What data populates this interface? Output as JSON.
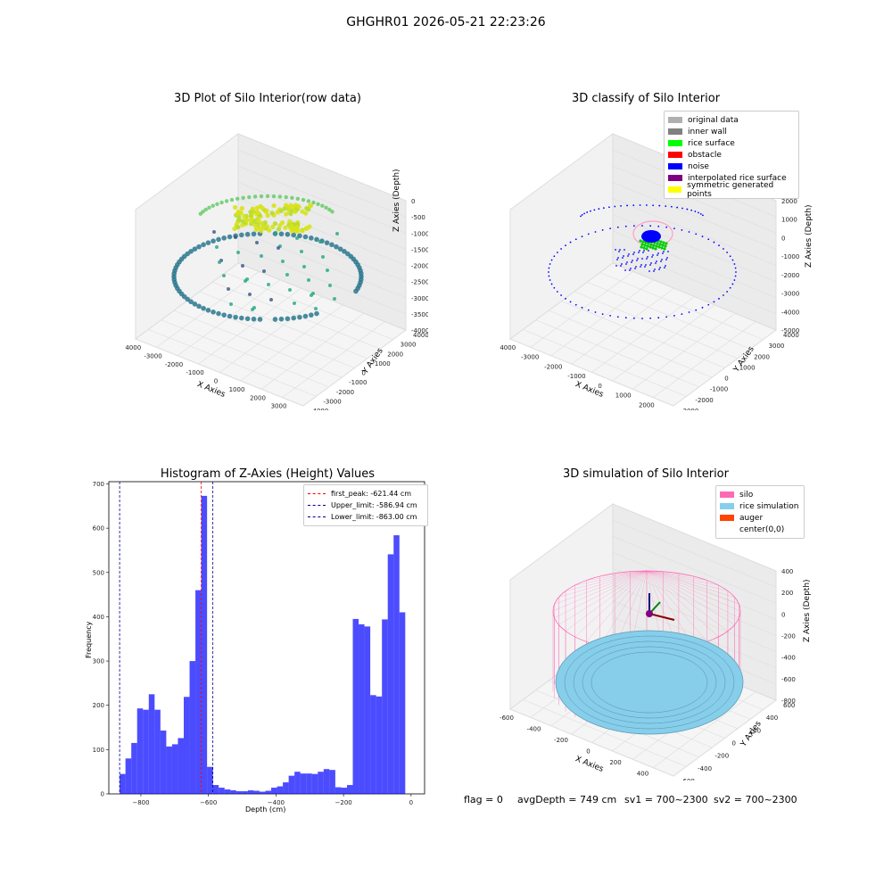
{
  "suptitle": "GHGHR01 2026-05-21 22:23:26",
  "plots": {
    "raw": {
      "title": "3D Plot of Silo Interior(row data)",
      "xlabel": "X Axies",
      "ylabel": "Y Axies",
      "zlabel": "Z Axies (Depth)",
      "xticks": [
        "-4000",
        "-3000",
        "-2000",
        "-1000",
        "0",
        "1000",
        "2000",
        "3000",
        "4000"
      ],
      "yticks": [
        "-4000",
        "-3000",
        "-2000",
        "-1000",
        "0",
        "1000",
        "2000",
        "3000",
        "4000"
      ],
      "zticks": [
        "0",
        "-500",
        "-1000",
        "-1500",
        "-2000",
        "-2500",
        "-3000",
        "-3500",
        "-4000"
      ]
    },
    "classify": {
      "title": "3D classify of Silo Interior",
      "xlabel": "X Axies",
      "ylabel": "Y Axies",
      "zlabel": "Z Axies (Depth)",
      "xticks": [
        "-4000",
        "-3000",
        "-2000",
        "-1000",
        "0",
        "1000",
        "2000",
        "3000"
      ],
      "yticks": [
        "-3000",
        "-2000",
        "-1000",
        "0",
        "1000",
        "2000",
        "3000",
        "4000"
      ],
      "zticks": [
        "2000",
        "1000",
        "0",
        "-1000",
        "-2000",
        "-3000",
        "-4000",
        "-5000"
      ],
      "legend": [
        {
          "label": "original data",
          "color": "#b0b0b0"
        },
        {
          "label": "inner wall",
          "color": "#808080"
        },
        {
          "label": "rice surface",
          "color": "#00ff00"
        },
        {
          "label": "obstacle",
          "color": "#ff0000"
        },
        {
          "label": "noise",
          "color": "#0000ff"
        },
        {
          "label": "interpolated rice surface",
          "color": "#800080"
        },
        {
          "label": "symmetric generated points",
          "color": "#ffff00"
        }
      ]
    },
    "simulation": {
      "title": "3D simulation of Silo Interior",
      "xlabel": "X Axies",
      "ylabel": "Y Axies",
      "zlabel": "Z Axies (Depth)",
      "xticks": [
        "-600",
        "-400",
        "-200",
        "0",
        "200",
        "400",
        "600"
      ],
      "yticks": [
        "-600",
        "-400",
        "-200",
        "0",
        "200",
        "400",
        "600"
      ],
      "zticks": [
        "400",
        "200",
        "0",
        "-200",
        "-400",
        "-600",
        "-800"
      ],
      "legend": [
        {
          "label": "silo",
          "color": "#ff69b4"
        },
        {
          "label": "rice simulation",
          "color": "#87ceeb"
        },
        {
          "label": "auger",
          "color": "#ff4500"
        },
        {
          "label": "center(0,0)",
          "color": ""
        }
      ]
    }
  },
  "footer": {
    "flag": "flag = 0",
    "avg": "avgDepth = 749 cm",
    "sv1": "sv1 = 700~2300",
    "sv2": "sv2 = 700~2300"
  },
  "chart_data": {
    "type": "bar",
    "title": "Histogram of Z-Axies (Height) Values",
    "xlabel": "Depth (cm)",
    "ylabel": "Frequency",
    "xlim": [
      -895,
      40
    ],
    "ylim": [
      0,
      705
    ],
    "xticks": [
      -800,
      -600,
      -400,
      -200,
      0
    ],
    "yticks": [
      0,
      100,
      200,
      300,
      400,
      500,
      600,
      700
    ],
    "bin_start": -863,
    "bin_width": 17.26,
    "values": [
      45,
      80,
      115,
      193,
      190,
      225,
      190,
      143,
      107,
      112,
      126,
      219,
      300,
      460,
      673,
      61,
      20,
      14,
      10,
      8,
      6,
      6,
      8,
      7,
      5,
      7,
      14,
      17,
      26,
      41,
      50,
      46,
      46,
      45,
      50,
      56,
      54,
      15,
      14,
      20,
      395,
      383,
      378,
      223,
      220,
      394,
      541,
      584,
      410
    ],
    "color": "#0000ff",
    "vlines": [
      {
        "label": "first_peak: -621.44 cm",
        "x": -621.44,
        "color": "#ff0000"
      },
      {
        "label": "Upper_limit: -586.94 cm",
        "x": -586.94,
        "color": "#00008b"
      },
      {
        "label": "Lower_limit: -863.00 cm",
        "x": -863.0,
        "color": "#00008b"
      }
    ]
  }
}
